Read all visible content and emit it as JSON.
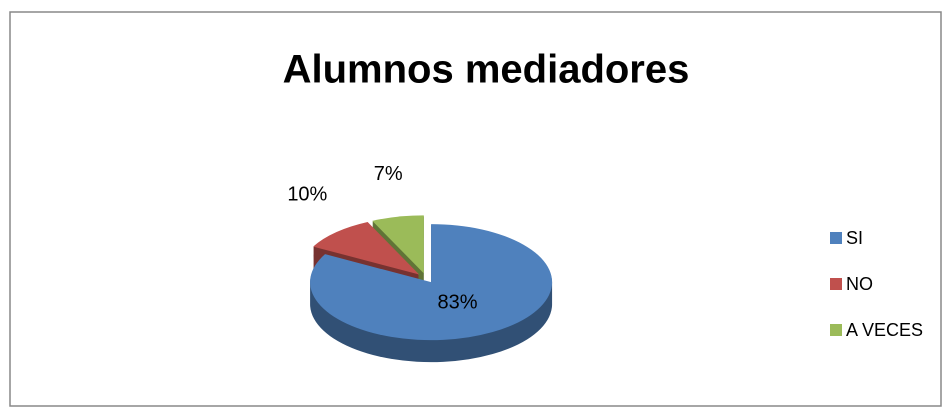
{
  "chart_data": {
    "type": "pie3d",
    "title": "Alumnos mediadores",
    "categories": [
      "SI",
      "NO",
      "A VECES"
    ],
    "values": [
      83,
      10,
      7
    ],
    "value_labels": [
      "83%",
      "10%",
      "7%"
    ],
    "colors": [
      "#4f81bd",
      "#c0504d",
      "#9bbb59"
    ],
    "legend": "right"
  }
}
